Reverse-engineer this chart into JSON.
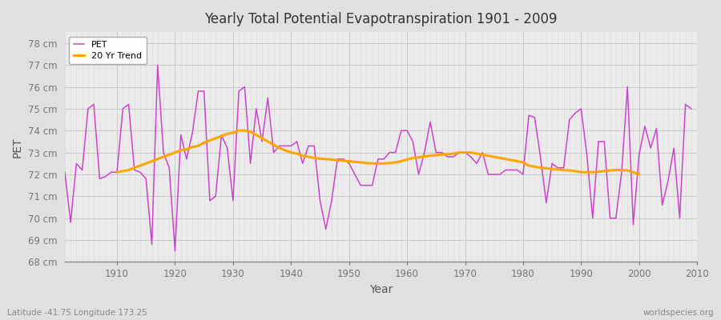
{
  "title": "Yearly Total Potential Evapotranspiration 1901 - 2009",
  "xlabel": "Year",
  "ylabel": "PET",
  "subtitle": "Latitude -41.75 Longitude 173.25",
  "watermark": "worldspecies.org",
  "pet_color": "#CC44CC",
  "trend_color": "#FFA500",
  "fig_bg": "#E0E0E0",
  "plot_bg": "#EBEBEB",
  "ylim": [
    68,
    78.5
  ],
  "yticks": [
    68,
    69,
    70,
    71,
    72,
    73,
    74,
    75,
    76,
    77,
    78
  ],
  "xlim_left": 1901,
  "xlim_right": 2010,
  "years": [
    1901,
    1902,
    1903,
    1904,
    1905,
    1906,
    1907,
    1908,
    1909,
    1910,
    1911,
    1912,
    1913,
    1914,
    1915,
    1916,
    1917,
    1918,
    1919,
    1920,
    1921,
    1922,
    1923,
    1924,
    1925,
    1926,
    1927,
    1928,
    1929,
    1930,
    1931,
    1932,
    1933,
    1934,
    1935,
    1936,
    1937,
    1938,
    1939,
    1940,
    1941,
    1942,
    1943,
    1944,
    1945,
    1946,
    1947,
    1948,
    1949,
    1950,
    1951,
    1952,
    1953,
    1954,
    1955,
    1956,
    1957,
    1958,
    1959,
    1960,
    1961,
    1962,
    1963,
    1964,
    1965,
    1966,
    1967,
    1968,
    1969,
    1970,
    1971,
    1972,
    1973,
    1974,
    1975,
    1976,
    1977,
    1978,
    1979,
    1980,
    1981,
    1982,
    1983,
    1984,
    1985,
    1986,
    1987,
    1988,
    1989,
    1990,
    1991,
    1992,
    1993,
    1994,
    1995,
    1996,
    1997,
    1998,
    1999,
    2000,
    2001,
    2002,
    2003,
    2004,
    2005,
    2006,
    2007,
    2008,
    2009
  ],
  "pet_values": [
    72.1,
    69.8,
    72.5,
    72.2,
    75.0,
    75.2,
    71.8,
    71.9,
    72.1,
    72.1,
    75.0,
    75.2,
    72.2,
    72.1,
    71.8,
    68.8,
    77.0,
    73.0,
    72.3,
    68.5,
    73.8,
    72.7,
    73.9,
    75.8,
    75.8,
    70.8,
    71.0,
    73.8,
    73.2,
    70.8,
    75.8,
    76.0,
    72.5,
    75.0,
    73.5,
    75.5,
    73.0,
    73.3,
    73.3,
    73.3,
    73.5,
    72.5,
    73.3,
    73.3,
    70.8,
    69.5,
    70.8,
    72.7,
    72.7,
    72.5,
    72.0,
    71.5,
    71.5,
    71.5,
    72.7,
    72.7,
    73.0,
    73.0,
    74.0,
    74.0,
    73.5,
    72.0,
    73.0,
    74.4,
    73.0,
    73.0,
    72.8,
    72.8,
    73.0,
    73.0,
    72.8,
    72.5,
    73.0,
    72.0,
    72.0,
    72.0,
    72.2,
    72.2,
    72.2,
    72.0,
    74.7,
    74.6,
    72.8,
    70.7,
    72.5,
    72.3,
    72.3,
    74.5,
    74.8,
    75.0,
    72.9,
    70.0,
    73.5,
    73.5,
    70.0,
    70.0,
    72.1,
    76.0,
    69.7,
    72.9,
    74.2,
    73.2,
    74.1,
    70.6,
    71.7,
    73.2,
    70.0,
    75.2,
    75.0
  ],
  "trend_values": [
    null,
    null,
    null,
    null,
    null,
    null,
    null,
    null,
    null,
    72.1,
    72.15,
    72.2,
    72.3,
    72.4,
    72.5,
    72.6,
    72.7,
    72.8,
    72.9,
    73.0,
    73.1,
    73.15,
    73.25,
    73.3,
    73.45,
    73.55,
    73.65,
    73.75,
    73.85,
    73.9,
    74.0,
    74.0,
    73.95,
    73.8,
    73.65,
    73.5,
    73.35,
    73.2,
    73.1,
    73.0,
    72.95,
    72.85,
    72.8,
    72.75,
    72.72,
    72.7,
    72.68,
    72.65,
    72.62,
    72.6,
    72.57,
    72.55,
    72.52,
    72.5,
    72.5,
    72.5,
    72.52,
    72.55,
    72.6,
    72.68,
    72.75,
    72.78,
    72.82,
    72.85,
    72.88,
    72.9,
    72.92,
    72.95,
    73.0,
    73.0,
    73.0,
    72.95,
    72.9,
    72.85,
    72.8,
    72.75,
    72.7,
    72.65,
    72.6,
    72.55,
    72.4,
    72.35,
    72.3,
    72.28,
    72.25,
    72.22,
    72.2,
    72.18,
    72.15,
    72.1,
    72.1,
    72.1,
    72.12,
    72.15,
    72.18,
    72.2,
    72.2,
    72.18,
    72.1,
    72.0,
    null,
    null,
    null,
    null,
    null,
    null,
    null,
    null,
    null
  ]
}
